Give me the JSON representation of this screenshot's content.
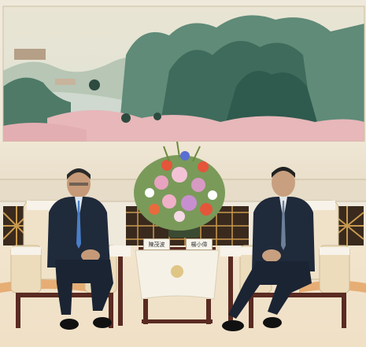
{
  "photo": {
    "description_free": true,
    "placards": [
      {
        "text": "陳茂波"
      },
      {
        "text": "楊小偉"
      }
    ],
    "palette": {
      "wall": "#f1eadb",
      "mountain_dark": "#2f5a4e",
      "mountain_mid": "#5f8b78",
      "blossom": "#e7b7b9",
      "chair": "#efe2c8",
      "suit": "#1f2a3a",
      "carpet": "#f4e6d0",
      "rug_orange": "#e08a3a"
    }
  }
}
